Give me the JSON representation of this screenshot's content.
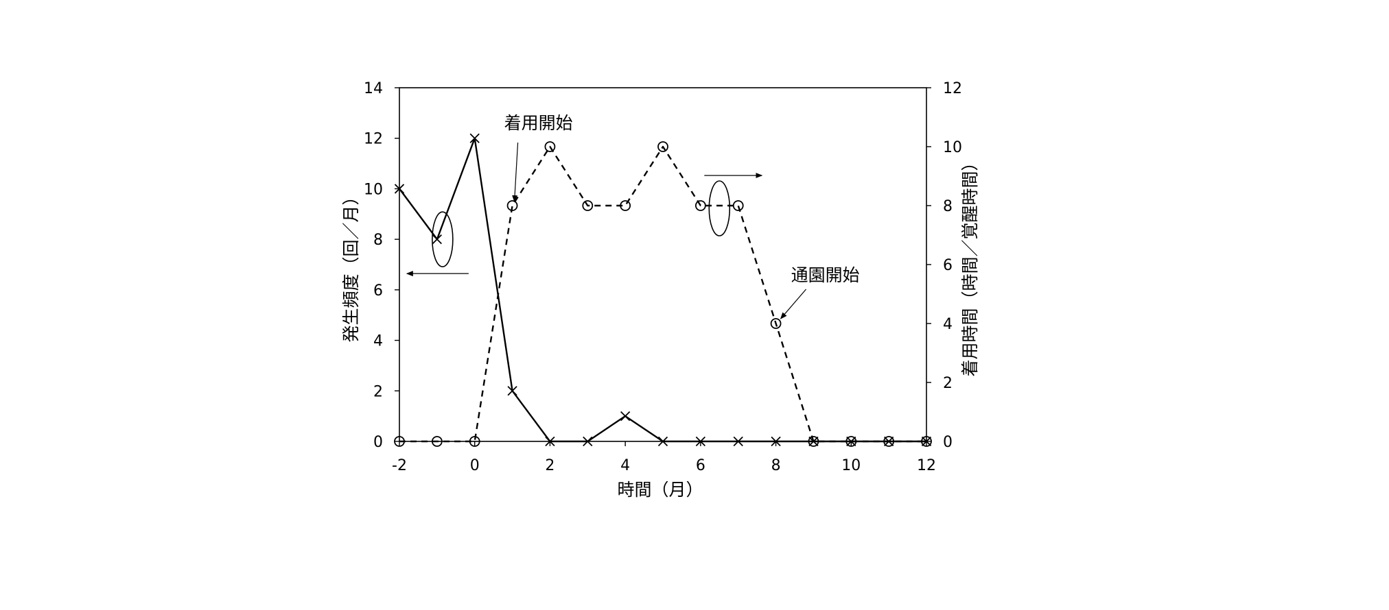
{
  "chart_data": {
    "type": "line",
    "xlabel": "時間（月）",
    "ylabel_left": "発生頻度（回／月）",
    "ylabel_right": "着用時間（時間／覚醒時間）",
    "xlim": [
      -2,
      12
    ],
    "ylim_left": [
      0,
      14
    ],
    "ylim_right": [
      0,
      12
    ],
    "x_ticks": [
      -2,
      0,
      2,
      4,
      6,
      8,
      10,
      12
    ],
    "y_left_ticks": [
      0,
      2,
      4,
      6,
      8,
      10,
      12,
      14
    ],
    "y_right_ticks": [
      0,
      2,
      4,
      6,
      8,
      10,
      12
    ],
    "grid": false,
    "legend": "none",
    "x": [
      -2,
      -1,
      0,
      1,
      2,
      3,
      4,
      5,
      6,
      7,
      8,
      9,
      10,
      11,
      12
    ],
    "series": [
      {
        "axis": "left",
        "marker": "cross",
        "line": "solid",
        "values": [
          10,
          8,
          12,
          2,
          0,
          0,
          1,
          0,
          0,
          0,
          0,
          0,
          0,
          0,
          0
        ]
      },
      {
        "axis": "right",
        "marker": "circle",
        "line": "dashed",
        "values": [
          0,
          0,
          0,
          8,
          10,
          8,
          8,
          10,
          8,
          8,
          4,
          0,
          0,
          0,
          0
        ]
      }
    ],
    "annotations": [
      {
        "text": "着用開始",
        "x": 1,
        "y_right": 8
      },
      {
        "text": "通園開始",
        "x": 8,
        "y_right": 4
      }
    ]
  }
}
